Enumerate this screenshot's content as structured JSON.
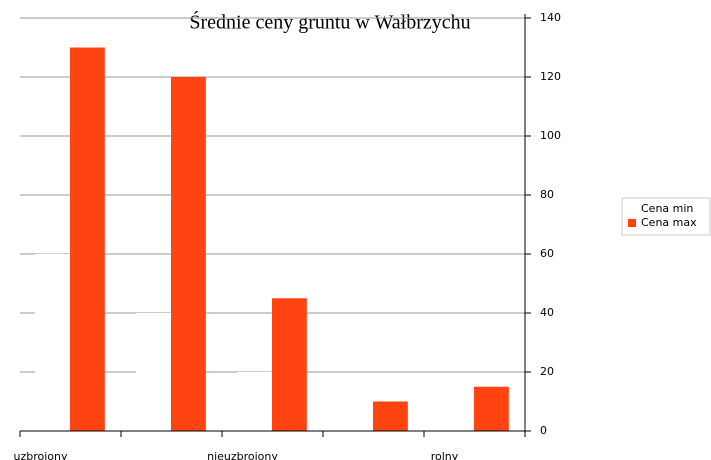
{
  "chart_data": {
    "type": "bar",
    "title": "Średnie ceny gruntu w Wałbrzychu",
    "categories": [
      "uzbrojony",
      null,
      "nieuzbrojony",
      null,
      "rolny"
    ],
    "series": [
      {
        "name": "Cena min",
        "color": "#ffffff",
        "values": [
          60,
          40,
          20,
          0,
          0
        ]
      },
      {
        "name": "Cena max",
        "color": "#ff4411",
        "values": [
          130,
          120,
          45,
          10,
          15
        ]
      }
    ],
    "ylim": [
      0,
      140
    ],
    "yticks": [
      0,
      20,
      40,
      60,
      80,
      100,
      120,
      140
    ],
    "grid": true,
    "legend": "right"
  }
}
